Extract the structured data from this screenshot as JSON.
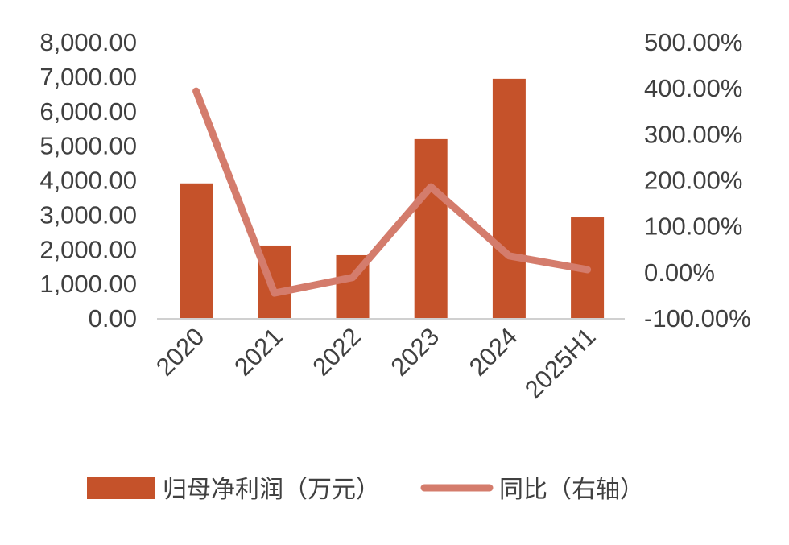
{
  "chart_data": {
    "type": "bar",
    "title": "",
    "categories": [
      "2020",
      "2021",
      "2022",
      "2023",
      "2024",
      "2025H1"
    ],
    "series": [
      {
        "name": "归母净利润（万元）",
        "type": "bar",
        "axis": "left",
        "color": "#C5522A",
        "values": [
          3900,
          2100,
          1820,
          5180,
          6930,
          2915
        ]
      },
      {
        "name": "同比（右轴）",
        "type": "line",
        "axis": "right",
        "color": "#D47C6C",
        "values": [
          393,
          -46,
          -12,
          185,
          35,
          5
        ]
      }
    ],
    "y_left": {
      "range": [
        0,
        8000
      ],
      "ticks": [
        "0.00",
        "1,000.00",
        "2,000.00",
        "3,000.00",
        "4,000.00",
        "5,000.00",
        "6,000.00",
        "7,000.00",
        "8,000.00"
      ]
    },
    "y_right": {
      "range": [
        -100,
        500
      ],
      "unit": "%",
      "ticks": [
        "-100.00%",
        "0.00%",
        "100.00%",
        "200.00%",
        "300.00%",
        "400.00%",
        "500.00%"
      ]
    },
    "grid": false,
    "legend_position": "bottom"
  }
}
